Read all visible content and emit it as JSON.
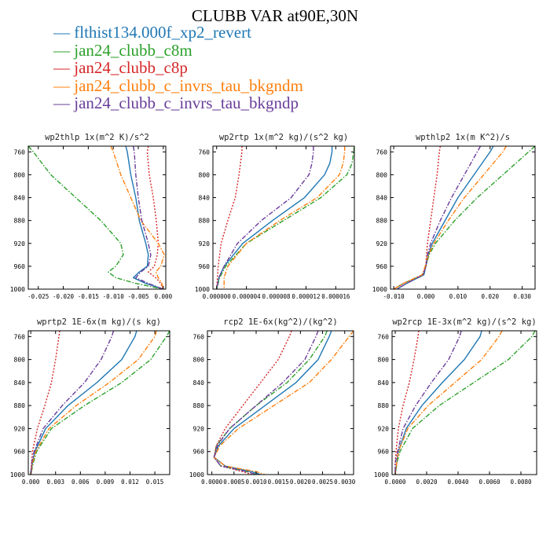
{
  "title": "CLUBB VAR at90E,30N",
  "legend": [
    {
      "label": "flthist134.000f_xp2_revert",
      "color": "#1f77b4"
    },
    {
      "label": "jan24_clubb_c8m",
      "color": "#2ca02c"
    },
    {
      "label": "jan24_clubb_c8p",
      "color": "#d62728"
    },
    {
      "label": "jan24_clubb_c_invrs_tau_bkgndm",
      "color": "#ff7f0e"
    },
    {
      "label": "jan24_clubb_c_invrs_tau_bkgndp",
      "color": "#6a3d9a"
    }
  ],
  "chart_data": [
    {
      "type": "line",
      "title": "wp2thlp  1x(m^2 K)/s^2",
      "xlim": [
        -0.027,
        0.0005
      ],
      "xticks": [
        -0.025,
        -0.02,
        -0.015,
        -0.01,
        -0.005,
        0.0
      ],
      "xtick_labels": [
        "-0.025",
        "-0.020",
        "-0.015",
        "-0.010",
        "-0.005",
        "0.000"
      ],
      "ylim": [
        1000,
        750
      ],
      "yticks": [
        760,
        800,
        840,
        880,
        920,
        960,
        1000
      ],
      "y": [
        750,
        760,
        800,
        840,
        880,
        920,
        940,
        960,
        970,
        980,
        990,
        1000
      ],
      "series": [
        {
          "values": [
            -0.0075,
            -0.0072,
            -0.0065,
            -0.0055,
            -0.0048,
            -0.0035,
            -0.003,
            -0.0032,
            -0.0048,
            -0.006,
            -0.0035,
            0.0
          ]
        },
        {
          "values": [
            -0.027,
            -0.026,
            -0.0225,
            -0.0175,
            -0.0125,
            -0.0085,
            -0.008,
            -0.0095,
            -0.011,
            -0.0095,
            -0.0055,
            0.0
          ]
        },
        {
          "values": [
            -0.003,
            -0.0032,
            -0.0028,
            -0.002,
            -0.0014,
            -0.001,
            -0.0012,
            -0.0018,
            -0.003,
            -0.0015,
            -0.0005,
            0.0
          ]
        },
        {
          "values": [
            -0.0105,
            -0.01,
            -0.0085,
            -0.0065,
            -0.0045,
            -0.001,
            0.0002,
            -0.0005,
            -0.0015,
            -0.001,
            -0.0003,
            0.0
          ]
        },
        {
          "values": [
            -0.006,
            -0.0058,
            -0.0055,
            -0.005,
            -0.0043,
            -0.003,
            -0.0025,
            -0.003,
            -0.0045,
            -0.0055,
            -0.003,
            0.0
          ]
        }
      ]
    },
    {
      "type": "line",
      "title": "wp2rtp  1x(m^2 kg)/(s^2 kg)",
      "xlim": [
        -5e-07,
        1.85e-05
      ],
      "xticks": [
        0.0,
        4e-06,
        8e-06,
        1.2e-05,
        1.6e-05
      ],
      "xtick_labels": [
        "0.000000",
        "0.000004",
        "0.000008",
        "0.000012",
        "0.000016"
      ],
      "ylim": [
        1000,
        750
      ],
      "yticks": [
        760,
        800,
        840,
        880,
        920,
        960,
        1000
      ],
      "y": [
        750,
        760,
        780,
        800,
        840,
        880,
        920,
        960,
        980,
        1000
      ],
      "series": [
        {
          "values": [
            1.55e-05,
            1.55e-05,
            1.52e-05,
            1.45e-05,
            1.18e-05,
            7.5e-06,
            3.5e-06,
            1e-06,
            3e-07,
            0.0
          ]
        },
        {
          "values": [
            1.85e-05,
            1.84e-05,
            1.82e-05,
            1.75e-05,
            1.4e-05,
            9e-06,
            4e-06,
            1.2e-06,
            4e-07,
            0.0
          ]
        },
        {
          "values": [
            3.4e-06,
            3.4e-06,
            3.2e-06,
            3e-06,
            2.5e-06,
            1.5e-06,
            6e-07,
            2e-07,
            1e-07,
            0.0
          ]
        },
        {
          "values": [
            1.72e-05,
            1.72e-05,
            1.7e-05,
            1.65e-05,
            1.35e-05,
            8.5e-06,
            4e-06,
            1.5e-06,
            1e-06,
            1e-06
          ]
        },
        {
          "values": [
            1.3e-05,
            1.3e-05,
            1.28e-05,
            1.24e-05,
            1e-05,
            6e-06,
            2.8e-06,
            1e-06,
            3e-07,
            0.0
          ]
        }
      ]
    },
    {
      "type": "line",
      "title": "wpthlp2  1x(m K^2)/s",
      "xlim": [
        -0.011,
        0.034
      ],
      "xticks": [
        -0.01,
        0.0,
        0.01,
        0.02,
        0.03
      ],
      "xtick_labels": [
        "-0.010",
        "0.000",
        "0.010",
        "0.020",
        "0.030"
      ],
      "ylim": [
        1000,
        750
      ],
      "yticks": [
        760,
        800,
        840,
        880,
        920,
        960,
        1000
      ],
      "y": [
        750,
        760,
        800,
        840,
        880,
        920,
        940,
        960,
        975,
        990,
        1000
      ],
      "series": [
        {
          "values": [
            0.021,
            0.02,
            0.015,
            0.01,
            0.006,
            0.002,
            0.0008,
            0.0,
            -0.0006,
            -0.006,
            -0.009
          ]
        },
        {
          "values": [
            0.034,
            0.032,
            0.024,
            0.016,
            0.009,
            0.003,
            0.001,
            0.0,
            -0.001,
            -0.007,
            -0.01
          ]
        },
        {
          "values": [
            0.0045,
            0.0042,
            0.0035,
            0.0025,
            0.0015,
            0.0005,
            0.0002,
            0.0,
            -0.001,
            -0.007,
            -0.01
          ]
        },
        {
          "values": [
            0.025,
            0.024,
            0.018,
            0.012,
            0.007,
            0.0025,
            0.0008,
            -0.0002,
            -0.0012,
            -0.007,
            -0.01
          ]
        },
        {
          "values": [
            0.017,
            0.016,
            0.012,
            0.008,
            0.0045,
            0.0015,
            0.0005,
            0.0,
            -0.0008,
            -0.006,
            -0.009
          ]
        }
      ]
    },
    {
      "type": "line",
      "title": "wprtp2  1E-6x(m kg)/(s kg)",
      "xlim": [
        -0.0003,
        0.0168
      ],
      "xticks": [
        0.0,
        0.003,
        0.006,
        0.009,
        0.012,
        0.015
      ],
      "xtick_labels": [
        "0.000",
        "0.003",
        "0.006",
        "0.009",
        "0.012",
        "0.015"
      ],
      "ylim": [
        1000,
        750
      ],
      "yticks": [
        760,
        800,
        840,
        880,
        920,
        960,
        1000
      ],
      "y": [
        750,
        760,
        800,
        840,
        880,
        920,
        960,
        980,
        1000
      ],
      "series": [
        {
          "values": [
            0.0128,
            0.0126,
            0.011,
            0.008,
            0.0045,
            0.0018,
            0.0005,
            0.0002,
            0.0
          ]
        },
        {
          "values": [
            0.0168,
            0.0164,
            0.0145,
            0.011,
            0.0065,
            0.0025,
            0.0007,
            0.0003,
            0.0
          ]
        },
        {
          "values": [
            0.0035,
            0.0034,
            0.003,
            0.0025,
            0.0017,
            0.0008,
            0.0002,
            0.0001,
            0.0
          ]
        },
        {
          "values": [
            0.0152,
            0.015,
            0.013,
            0.0095,
            0.0055,
            0.0022,
            0.0006,
            0.0002,
            0.0
          ]
        },
        {
          "values": [
            0.01,
            0.0098,
            0.0085,
            0.0065,
            0.0038,
            0.0015,
            0.0004,
            0.0001,
            0.0
          ]
        }
      ]
    },
    {
      "type": "line",
      "title": "rcp2  1E-6x(kg^2)/(kg^2)",
      "xlim": [
        -0.0001,
        0.0032
      ],
      "xticks": [
        0.0,
        0.0005,
        0.001,
        0.0015,
        0.002,
        0.0025,
        0.003
      ],
      "xtick_labels": [
        "0.0000",
        "0.0005",
        "0.0010",
        "0.0015",
        "0.0020",
        "0.0025",
        "0.0030"
      ],
      "ylim": [
        1000,
        750
      ],
      "yticks": [
        760,
        800,
        840,
        880,
        920,
        960,
        1000
      ],
      "y": [
        750,
        760,
        800,
        840,
        880,
        920,
        950,
        970,
        985,
        995,
        1000
      ],
      "series": [
        {
          "values": [
            0.0027,
            0.00265,
            0.0024,
            0.0019,
            0.0012,
            0.0005,
            0.00015,
            5e-05,
            0.0003,
            0.0009,
            0.0011
          ]
        },
        {
          "values": [
            0.0026,
            0.00255,
            0.0022,
            0.0017,
            0.001,
            0.0004,
            0.0001,
            5e-05,
            0.0002,
            0.0008,
            0.001
          ]
        },
        {
          "values": [
            0.0018,
            0.00175,
            0.0015,
            0.0011,
            0.0007,
            0.0003,
            0.0001,
            5e-05,
            0.0002,
            0.0007,
            0.0009
          ]
        },
        {
          "values": [
            0.0032,
            0.0031,
            0.0027,
            0.0022,
            0.0014,
            0.0006,
            0.00018,
            5e-05,
            0.0003,
            0.001,
            0.0012
          ]
        },
        {
          "values": [
            0.0024,
            0.00235,
            0.0021,
            0.0016,
            0.001,
            0.0004,
            0.00012,
            5e-05,
            0.0002,
            0.0008,
            0.001
          ]
        }
      ]
    },
    {
      "type": "line",
      "title": "wp2rcp  1E-3x(m^2 kg)/(s^2 kg)",
      "xlim": [
        -0.0002,
        0.009
      ],
      "xticks": [
        0.0,
        0.002,
        0.004,
        0.006,
        0.008
      ],
      "xtick_labels": [
        "0.0000",
        "0.0020",
        "0.0040",
        "0.0060",
        "0.0080"
      ],
      "ylim": [
        1000,
        750
      ],
      "yticks": [
        760,
        800,
        840,
        880,
        920,
        960,
        1000
      ],
      "y": [
        750,
        760,
        800,
        840,
        880,
        920,
        960,
        980,
        1000
      ],
      "series": [
        {
          "values": [
            0.0055,
            0.0054,
            0.0044,
            0.003,
            0.0017,
            0.0007,
            0.0002,
            0.0001,
            0.0
          ]
        },
        {
          "values": [
            0.0089,
            0.0087,
            0.0072,
            0.005,
            0.0028,
            0.0011,
            0.0003,
            0.0001,
            0.0
          ]
        },
        {
          "values": [
            0.0015,
            0.00145,
            0.0012,
            0.0009,
            0.0005,
            0.0002,
            5e-05,
            0.0,
            0.0
          ]
        },
        {
          "values": [
            0.0068,
            0.0066,
            0.0055,
            0.0038,
            0.0021,
            0.0008,
            0.0002,
            0.0001,
            0.0
          ]
        },
        {
          "values": [
            0.0042,
            0.0041,
            0.0034,
            0.0023,
            0.0013,
            0.0005,
            0.00015,
            0.0,
            0.0
          ]
        }
      ]
    }
  ]
}
